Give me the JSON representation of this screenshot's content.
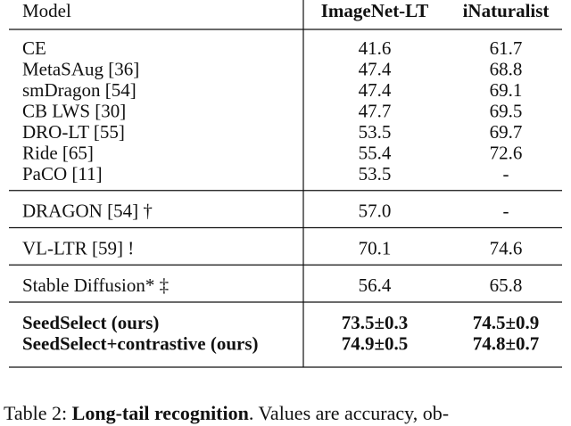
{
  "table": {
    "header": [
      "Model",
      "ImageNet-LT",
      "iNaturalist"
    ],
    "groups": [
      [
        [
          "CE",
          "41.6",
          "61.7"
        ],
        [
          "MetaSAug [36]",
          "47.4",
          "68.8"
        ],
        [
          "smDragon [54]",
          "47.4",
          "69.1"
        ],
        [
          "CB LWS [30]",
          "47.7",
          "69.5"
        ],
        [
          "DRO-LT [55]",
          "53.5",
          "69.7"
        ],
        [
          "Ride [65]",
          "55.4",
          "72.6"
        ],
        [
          "PaCO [11]",
          "53.5",
          "-"
        ]
      ],
      [
        [
          "DRAGON [54] †",
          "57.0",
          "-"
        ]
      ],
      [
        [
          "VL-LTR [59] !",
          "70.1",
          "74.6"
        ]
      ],
      [
        [
          "Stable Diffusion* ‡",
          "56.4",
          "65.8"
        ]
      ],
      [
        [
          "SeedSelect (ours)",
          "73.5±0.3",
          "74.5±0.9"
        ],
        [
          "SeedSelect+contrastive (ours)",
          "74.9±0.5",
          "74.8±0.7"
        ]
      ]
    ]
  },
  "caption": {
    "label": "Table 2:",
    "bold": "Long-tail recognition",
    "text": ". Values are accuracy, ob-"
  }
}
